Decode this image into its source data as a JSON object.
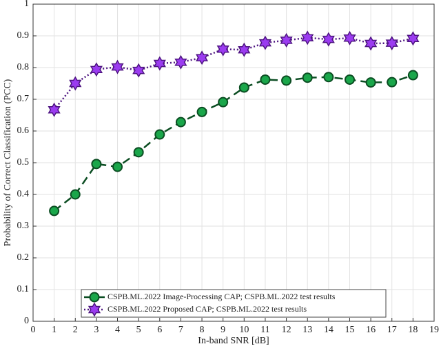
{
  "chart_data": {
    "type": "line",
    "xlabel": "In-band SNR [dB]",
    "ylabel": "Probability of Correct Classification (PCC)",
    "x": [
      1,
      2,
      3,
      4,
      5,
      6,
      7,
      8,
      9,
      10,
      11,
      12,
      13,
      14,
      15,
      16,
      17,
      18
    ],
    "series": [
      {
        "name": "CSPB.ML.2022 Image-Processing CAP; CSPB.ML.2022 test results",
        "color": "#1aa64a",
        "edge": "#0b4d22",
        "marker": "circle",
        "dash": "12 7",
        "values": [
          0.348,
          0.4,
          0.496,
          0.487,
          0.533,
          0.589,
          0.628,
          0.66,
          0.691,
          0.737,
          0.762,
          0.759,
          0.768,
          0.77,
          0.762,
          0.753,
          0.754,
          0.776
        ]
      },
      {
        "name": "CSPB.ML.2022 Proposed CAP; CSPB.ML.2022 test results",
        "color": "#9b3cf0",
        "edge": "#4d1480",
        "marker": "star",
        "dash": "2 3",
        "values": [
          0.667,
          0.75,
          0.794,
          0.802,
          0.791,
          0.813,
          0.817,
          0.831,
          0.858,
          0.856,
          0.878,
          0.886,
          0.894,
          0.889,
          0.893,
          0.876,
          0.877,
          0.892
        ]
      }
    ],
    "xlim": [
      0,
      19
    ],
    "xticks": [
      0,
      1,
      2,
      3,
      4,
      5,
      6,
      7,
      8,
      9,
      10,
      11,
      12,
      13,
      14,
      15,
      16,
      17,
      18,
      19
    ],
    "ylim": [
      0,
      1
    ],
    "yticks": [
      0,
      0.1,
      0.2,
      0.3,
      0.4,
      0.5,
      0.6,
      0.7,
      0.8,
      0.9,
      1
    ],
    "grid": true,
    "legend": "lower center"
  }
}
